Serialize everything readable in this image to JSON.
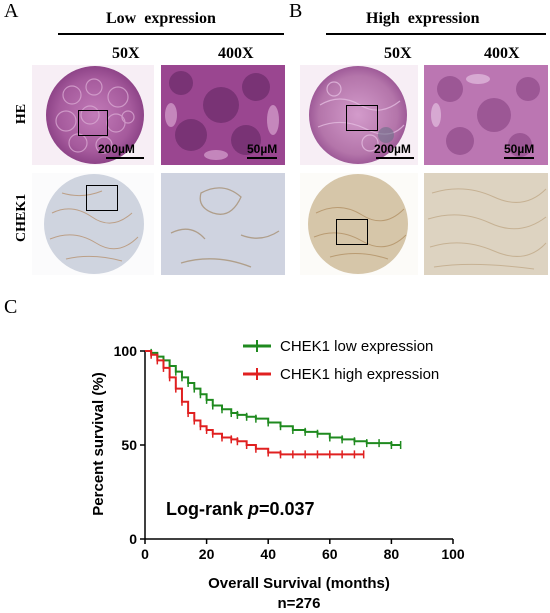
{
  "panels": {
    "A": {
      "letter": "A",
      "header": "Low  expression",
      "mag_low": "50X",
      "mag_high": "400X",
      "scale_low": "200µM",
      "scale_high": "50µM"
    },
    "B": {
      "letter": "B",
      "header": "High  expression",
      "mag_low": "50X",
      "mag_high": "400X",
      "scale_low": "200µM",
      "scale_high": "50µM"
    },
    "C": {
      "letter": "C"
    }
  },
  "row_labels": {
    "he": "HE",
    "chek1": "CHEK1"
  },
  "colors": {
    "he_stain": "#b06aa8",
    "he_high": "#a24b96",
    "ihc_low": "#cdd2de",
    "ihc_high": "#d8c9b0",
    "low_expr": "#1f8a1f",
    "high_expr": "#e02020"
  },
  "chart_data": {
    "type": "line",
    "title": "",
    "xlabel": "Overall Survival (months)",
    "xlabel2": "n=276",
    "ylabel": "Percent survival (%)",
    "xlim": [
      0,
      100
    ],
    "ylim": [
      0,
      100
    ],
    "xticks": [
      0,
      20,
      40,
      60,
      80,
      100
    ],
    "yticks": [
      0,
      50,
      100
    ],
    "annotation": "Log-rank p=0.037",
    "annotation_prefix": "Log-rank ",
    "annotation_p": "p",
    "annotation_value": "=0.037",
    "legend": "top-right",
    "series": [
      {
        "name": "CHEK1 low expression",
        "color": "#1f8a1f",
        "x": [
          0,
          2,
          4,
          6,
          8,
          10,
          12,
          14,
          16,
          18,
          20,
          22,
          25,
          28,
          30,
          33,
          36,
          40,
          44,
          48,
          52,
          56,
          60,
          64,
          68,
          72,
          76,
          80,
          83
        ],
        "y": [
          100,
          99,
          97,
          95,
          92,
          89,
          86,
          83,
          80,
          77,
          74,
          71,
          69,
          67,
          66,
          65,
          64,
          62,
          60,
          58,
          57,
          56,
          54,
          53,
          52,
          51,
          51,
          50,
          50
        ]
      },
      {
        "name": "CHEK1 high expression",
        "color": "#e02020",
        "x": [
          0,
          2,
          4,
          6,
          8,
          10,
          12,
          14,
          16,
          18,
          20,
          22,
          25,
          28,
          30,
          33,
          36,
          40,
          44,
          48,
          52,
          56,
          60,
          64,
          68,
          71
        ],
        "y": [
          100,
          98,
          95,
          91,
          86,
          80,
          73,
          67,
          63,
          60,
          58,
          56,
          54,
          53,
          52,
          50,
          48,
          46,
          45,
          45,
          45,
          45,
          45,
          45,
          45,
          45
        ]
      }
    ]
  }
}
